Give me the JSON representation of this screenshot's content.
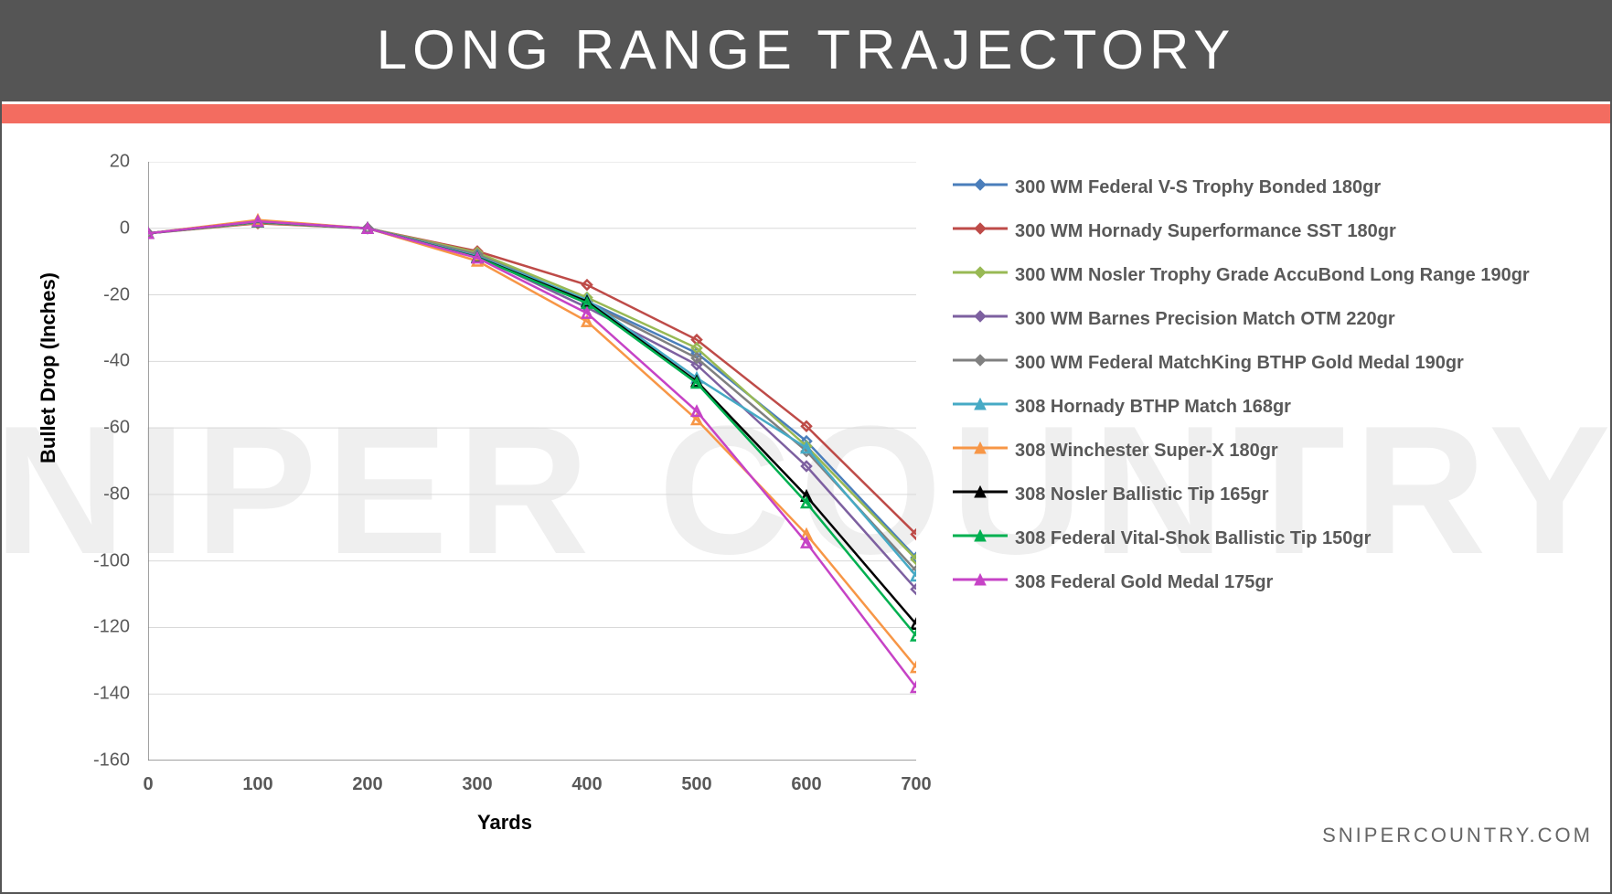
{
  "header": {
    "title": "LONG RANGE TRAJECTORY"
  },
  "accent_color": "#f36c60",
  "header_bg": "#555555",
  "watermark_text": "SNIPER COUNTRY",
  "footer_text": "SNIPERCOUNTRY.COM",
  "chart": {
    "type": "line",
    "xlabel": "Yards",
    "ylabel": "Bullet Drop (Inches)",
    "label_fontsize": 22,
    "tick_fontsize": 20,
    "tick_color": "#595959",
    "background_color": "#ffffff",
    "grid_color": "#d9d9d9",
    "axis_color": "#808080",
    "x_values": [
      0,
      100,
      200,
      300,
      400,
      500,
      600,
      700
    ],
    "xlim": [
      0,
      700
    ],
    "ylim": [
      -160,
      20
    ],
    "ytick_step": 20,
    "line_width": 2.5,
    "marker_size": 10,
    "legend_position": "right",
    "series": [
      {
        "name": "300 WM Federal V-S Trophy Bonded 180gr",
        "color": "#4a7ebb",
        "marker": "diamond",
        "values": [
          -1.5,
          1.8,
          0,
          -7.6,
          -21.9,
          -37.5,
          -64.0,
          -99.0
        ]
      },
      {
        "name": "300 WM Hornady Superformance SST 180gr",
        "color": "#be4b48",
        "marker": "diamond",
        "values": [
          -1.5,
          1.5,
          0,
          -6.9,
          -17.0,
          -33.5,
          -59.5,
          -92.0
        ]
      },
      {
        "name": "300 WM Nosler Trophy Grade AccuBond Long Range 190gr",
        "color": "#98b954",
        "marker": "diamond",
        "values": [
          -1.5,
          1.7,
          0,
          -7.3,
          -20.8,
          -36.0,
          -65.5,
          -99.5
        ]
      },
      {
        "name": "300 WM Barnes Precision Match OTM 220gr",
        "color": "#7d60a0",
        "marker": "diamond",
        "values": [
          -1.5,
          1.9,
          0,
          -8.3,
          -23.8,
          -41.0,
          -71.5,
          -108.5
        ]
      },
      {
        "name": "300 WM Federal MatchKing BTHP Gold Medal 190gr",
        "color": "#808080",
        "marker": "diamond",
        "values": [
          -1.5,
          1.8,
          0,
          -7.8,
          -22.3,
          -39.0,
          -67.0,
          -103.0
        ]
      },
      {
        "name": "308 Hornady BTHP Match 168gr",
        "color": "#46aac5",
        "marker": "triangle",
        "values": [
          -1.5,
          2.0,
          0,
          -8.4,
          -21.5,
          -45.0,
          -66.0,
          -104.5
        ]
      },
      {
        "name": "308 Winchester Super-X 180gr",
        "color": "#f79646",
        "marker": "triangle",
        "values": [
          -1.5,
          2.5,
          0,
          -9.8,
          -28.0,
          -57.5,
          -92.0,
          -132.0
        ]
      },
      {
        "name": "308 Nosler Ballistic Tip 165gr",
        "color": "#000000",
        "marker": "triangle",
        "values": [
          -1.5,
          2.0,
          0,
          -8.7,
          -22.0,
          -46.0,
          -80.5,
          -119.0
        ]
      },
      {
        "name": "308 Federal Vital-Shok Ballistic Tip 150gr",
        "color": "#00b050",
        "marker": "triangle",
        "values": [
          -1.5,
          2.0,
          0,
          -8.8,
          -22.5,
          -46.5,
          -82.5,
          -122.5
        ]
      },
      {
        "name": "308 Federal Gold Medal 175gr",
        "color": "#c643c6",
        "marker": "triangle",
        "values": [
          -1.5,
          2.1,
          0,
          -8.9,
          -25.5,
          -55.0,
          -94.5,
          -138.0
        ]
      }
    ]
  }
}
